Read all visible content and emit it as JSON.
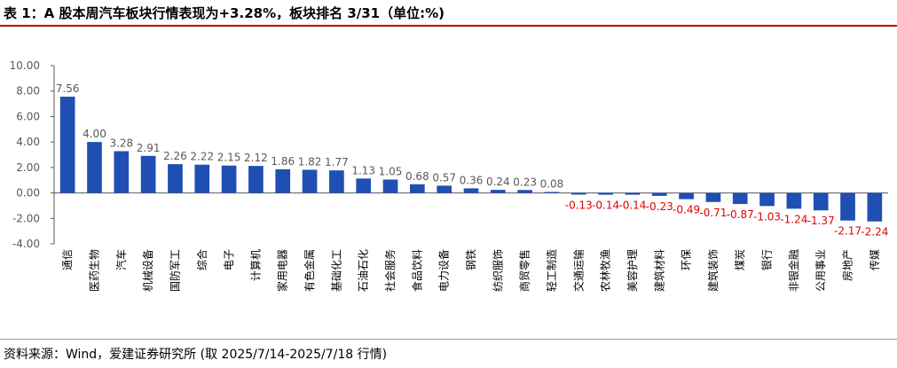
{
  "title": "表 1：A 股本周汽车板块行情表现为+3.28%，板块排名 3/31（单位:%)",
  "source": "资料来源：Wind，爱建证券研究所 (取 2025/7/14-2025/7/18 行情)",
  "colors": {
    "bar": "#1f4fb3",
    "positive_label": "#595959",
    "negative_label": "#e00000",
    "accent_rule": "#c00000"
  },
  "chart_data": {
    "type": "bar",
    "title": "表 1：A 股本周汽车板块行情表现为+3.28%，板块排名 3/31（单位:%)",
    "xlabel": "",
    "ylabel": "",
    "ylim": [
      -4,
      10
    ],
    "yticks": [
      "10.00",
      "8.00",
      "6.00",
      "4.00",
      "2.00",
      "0.00",
      "-2.00",
      "-4.00"
    ],
    "grid": false,
    "legend": "none",
    "categories": [
      "通信",
      "医药生物",
      "汽车",
      "机械设备",
      "国防军工",
      "综合",
      "电子",
      "计算机",
      "家用电器",
      "有色金属",
      "基础化工",
      "石油石化",
      "社会服务",
      "食品饮料",
      "电力设备",
      "钢铁",
      "纺织服饰",
      "商贸零售",
      "轻工制造",
      "交通运输",
      "农林牧渔",
      "美容护理",
      "建筑材料",
      "环保",
      "建筑装饰",
      "煤炭",
      "银行",
      "非银金融",
      "公用事业",
      "房地产",
      "传媒"
    ],
    "values": [
      7.56,
      4.0,
      3.28,
      2.91,
      2.26,
      2.22,
      2.15,
      2.12,
      1.86,
      1.82,
      1.77,
      1.13,
      1.05,
      0.68,
      0.57,
      0.36,
      0.24,
      0.23,
      0.08,
      -0.13,
      -0.14,
      -0.14,
      -0.23,
      -0.49,
      -0.71,
      -0.87,
      -1.03,
      -1.24,
      -1.37,
      -2.17,
      -2.24
    ],
    "value_labels": [
      "7.56",
      "4.00",
      "3.28",
      "2.91",
      "2.26",
      "2.22",
      "2.15",
      "2.12",
      "1.86",
      "1.82",
      "1.77",
      "1.13",
      "1.05",
      "0.68",
      "0.57",
      "0.36",
      "0.24",
      "0.23",
      "0.08",
      "-0.13",
      "-0.14",
      "-0.14",
      "-0.23",
      "-0.49",
      "-0.71",
      "-0.87",
      "-1.03",
      "-1.24",
      "-1.37",
      "-2.17",
      "-2.24"
    ]
  }
}
